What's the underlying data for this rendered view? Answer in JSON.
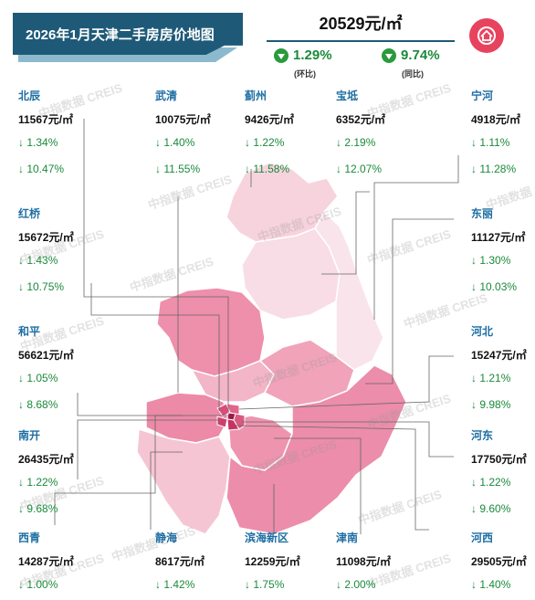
{
  "header": {
    "title": "2026年1月天津二手房房价地图",
    "avg_price": "20529元/㎡",
    "mom": {
      "value": "1.29%",
      "label": "(环比)"
    },
    "yoy": {
      "value": "9.74%",
      "label": "(同比)"
    }
  },
  "watermark": "中指数据 CREIS",
  "colors": {
    "banner": "#1e5a78",
    "decrease": "#1a8a3a",
    "district_name": "#1e6ea3",
    "logo": "#e8435e"
  },
  "districts": [
    {
      "id": "beichen",
      "name": "北辰",
      "price": "11567元/㎡",
      "mom": "↓ 1.34%",
      "yoy": "↓ 10.47%"
    },
    {
      "id": "wuqing",
      "name": "武清",
      "price": "10075元/㎡",
      "mom": "↓ 1.40%",
      "yoy": "↓ 11.55%"
    },
    {
      "id": "jizhou",
      "name": "蓟州",
      "price": "9426元/㎡",
      "mom": "↓ 1.22%",
      "yoy": "↓ 11.58%"
    },
    {
      "id": "baodi",
      "name": "宝坻",
      "price": "6352元/㎡",
      "mom": "↓ 2.19%",
      "yoy": "↓ 12.07%"
    },
    {
      "id": "ninghe",
      "name": "宁河",
      "price": "4918元/㎡",
      "mom": "↓ 1.11%",
      "yoy": "↓ 11.28%"
    },
    {
      "id": "hongqiao",
      "name": "红桥",
      "price": "15672元/㎡",
      "mom": "↓ 1.43%",
      "yoy": "↓ 10.75%"
    },
    {
      "id": "dongli",
      "name": "东丽",
      "price": "11127元/㎡",
      "mom": "↓ 1.30%",
      "yoy": "↓ 10.03%"
    },
    {
      "id": "heping",
      "name": "和平",
      "price": "56621元/㎡",
      "mom": "↓ 1.05%",
      "yoy": "↓ 8.68%"
    },
    {
      "id": "hebei",
      "name": "河北",
      "price": "15247元/㎡",
      "mom": "↓ 1.21%",
      "yoy": "↓ 9.98%"
    },
    {
      "id": "nankai",
      "name": "南开",
      "price": "26435元/㎡",
      "mom": "↓ 1.22%",
      "yoy": "↓ 9.68%"
    },
    {
      "id": "hedong",
      "name": "河东",
      "price": "17750元/㎡",
      "mom": "↓ 1.22%",
      "yoy": "↓ 9.60%"
    },
    {
      "id": "xiqing",
      "name": "西青",
      "price": "14287元/㎡",
      "mom": "↓ 1.00%",
      "yoy": ""
    },
    {
      "id": "jinghai",
      "name": "静海",
      "price": "8617元/㎡",
      "mom": "↓ 1.42%",
      "yoy": ""
    },
    {
      "id": "binhai",
      "name": "滨海新区",
      "price": "12259元/㎡",
      "mom": "↓ 1.75%",
      "yoy": ""
    },
    {
      "id": "jinnan",
      "name": "津南",
      "price": "11098元/㎡",
      "mom": "↓ 2.00%",
      "yoy": ""
    },
    {
      "id": "hexi",
      "name": "河西",
      "price": "29505元/㎡",
      "mom": "↓ 1.40%",
      "yoy": ""
    }
  ]
}
